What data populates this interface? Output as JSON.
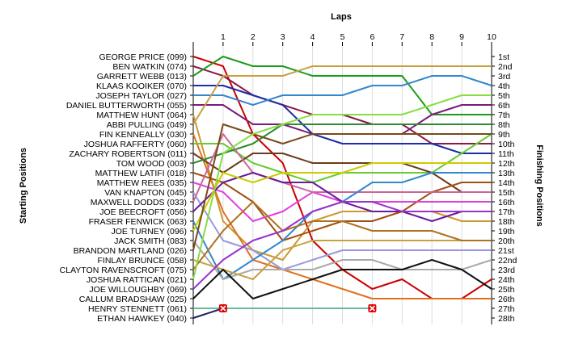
{
  "chart_data": {
    "type": "line",
    "title": "",
    "xlabel": "Laps",
    "ylabel_left": "Starting Positions",
    "ylabel_right": "Finishing Positions",
    "x": [
      0,
      1,
      2,
      3,
      4,
      5,
      6,
      7,
      8,
      9,
      10
    ],
    "x_tick_labels": [
      "1",
      "2",
      "3",
      "4",
      "5",
      "6",
      "7",
      "8",
      "9",
      "10"
    ],
    "ylim": [
      1,
      28
    ],
    "y_inverted": true,
    "grid": "vertical",
    "finishing_positions": [
      "1st",
      "2nd",
      "3rd",
      "4th",
      "5th",
      "6th",
      "7th",
      "8th",
      "9th",
      "10th",
      "11th",
      "12th",
      "13th",
      "14th",
      "15th",
      "16th",
      "17th",
      "18th",
      "19th",
      "20th",
      "21st",
      "22nd",
      "23rd",
      "24th",
      "25th",
      "26th",
      "27th",
      "28th"
    ],
    "retirement_marker_color": "#dd0000",
    "series": [
      {
        "name": "GEORGE PRICE (099)",
        "color": "#cc0000",
        "positions": [
          1,
          2,
          9,
          12,
          20,
          23,
          25,
          24,
          26,
          26,
          24
        ]
      },
      {
        "name": "BEN WATKIN (074)",
        "color": "#8b1a4a",
        "positions": [
          2,
          3,
          5,
          6,
          7,
          7,
          8,
          8,
          10,
          10,
          10
        ]
      },
      {
        "name": "GARRETT WEBB (013)",
        "color": "#1c9c1c",
        "positions": [
          3,
          1,
          2,
          2,
          3,
          3,
          3,
          3,
          7,
          7,
          7
        ]
      },
      {
        "name": "KLAAS KOOIKER (070)",
        "color": "#1c2ea8",
        "positions": [
          4,
          4,
          5,
          6,
          9,
          10,
          10,
          10,
          10,
          11,
          11
        ]
      },
      {
        "name": "JOSEPH TAYLOR (027)",
        "color": "#3388cc",
        "positions": [
          5,
          5,
          6,
          5,
          5,
          5,
          4,
          4,
          3,
          3,
          4
        ]
      },
      {
        "name": "DANIEL BUTTERWORTH (055)",
        "color": "#7a1a7a",
        "positions": [
          6,
          6,
          8,
          8,
          9,
          9,
          9,
          9,
          7,
          6,
          6
        ]
      },
      {
        "name": "MATTHEW HUNT (064)",
        "color": "#cc9933",
        "positions": [
          7,
          18,
          21,
          22,
          18,
          17,
          17,
          17,
          17,
          18,
          18
        ]
      },
      {
        "name": "ABBI PULLING (049)",
        "color": "#c8a040",
        "positions": [
          8,
          3,
          3,
          3,
          2,
          2,
          2,
          2,
          2,
          2,
          2
        ]
      },
      {
        "name": "FIN KENNEALLY (030)",
        "color": "#e07020",
        "positions": [
          9,
          17,
          22,
          23,
          24,
          25,
          26,
          26,
          26,
          26,
          26
        ]
      },
      {
        "name": "JOSHUA RAFFERTY (060)",
        "color": "#66cc33",
        "positions": [
          10,
          10,
          12,
          13,
          14,
          13,
          13,
          13,
          13,
          11,
          9
        ]
      },
      {
        "name": "ZACHARY ROBERTSON (011)",
        "color": "#6b3a1a",
        "positions": [
          11,
          13,
          11,
          11,
          12,
          12,
          12,
          12,
          13,
          15,
          15
        ]
      },
      {
        "name": "TOM WOOD (003)",
        "color": "#2e8b2e",
        "positions": [
          12,
          11,
          10,
          8,
          8,
          8,
          8,
          8,
          8,
          8,
          8
        ]
      },
      {
        "name": "MATTHEW LATIFI (018)",
        "color": "#a05010",
        "positions": [
          13,
          14,
          16,
          20,
          19,
          18,
          18,
          17,
          15,
          14,
          14
        ]
      },
      {
        "name": "MATTHEW REES (035)",
        "color": "#e040e0",
        "positions": [
          14,
          15,
          18,
          17,
          15,
          16,
          16,
          16,
          16,
          16,
          16
        ]
      },
      {
        "name": "VAN KNAPTON (045)",
        "color": "#9999dd",
        "positions": [
          15,
          20,
          21,
          23,
          22,
          21,
          21,
          21,
          21,
          21,
          21
        ]
      },
      {
        "name": "MAXWELL DODDS (033)",
        "color": "#cc6699",
        "positions": [
          16,
          9,
          13,
          14,
          15,
          15,
          15,
          15,
          15,
          15,
          15
        ]
      },
      {
        "name": "JOE BEECROFT (056)",
        "color": "#6a1a9a",
        "positions": [
          17,
          14,
          13,
          14,
          14,
          16,
          17,
          17,
          18,
          17,
          17
        ]
      },
      {
        "name": "FRASER FENWICK (063)",
        "color": "#3388cc",
        "positions": [
          18,
          24,
          22,
          20,
          17,
          16,
          14,
          14,
          13,
          13,
          13
        ]
      },
      {
        "name": "JOE TURNEY (096)",
        "color": "#cccc00",
        "positions": [
          19,
          13,
          14,
          13,
          13,
          13,
          12,
          12,
          12,
          12,
          12
        ]
      },
      {
        "name": "JACK SMITH (083)",
        "color": "#aaaaaa",
        "positions": [
          20,
          24,
          23,
          23,
          23,
          22,
          22,
          23,
          23,
          23,
          22
        ]
      },
      {
        "name": "BRANDON MARTLAND (026)",
        "color": "#7a4a1a",
        "positions": [
          21,
          8,
          9,
          10,
          9,
          9,
          9,
          9,
          9,
          9,
          9
        ]
      },
      {
        "name": "FINLAY BRUNCE (058)",
        "color": "#c8a040",
        "positions": [
          22,
          23,
          24,
          21,
          20,
          20,
          20,
          20,
          20,
          20,
          20
        ]
      },
      {
        "name": "CLAYTON RAVENSCROFT (075)",
        "color": "#b07020",
        "positions": [
          23,
          19,
          16,
          19,
          18,
          18,
          19,
          19,
          19,
          20,
          20
        ]
      },
      {
        "name": "JOSHUA RATTICAN (021)",
        "color": "#88dd44",
        "positions": [
          24,
          11,
          9,
          8,
          7,
          7,
          7,
          7,
          6,
          5,
          5
        ]
      },
      {
        "name": "JOE WILLOUGHBY (069)",
        "color": "#9933cc",
        "positions": [
          25,
          22,
          20,
          19,
          17,
          16,
          16,
          17,
          17,
          17,
          17
        ]
      },
      {
        "name": "CALLUM BRADSHAW (025)",
        "color": "#111111",
        "positions": [
          26,
          23,
          26,
          25,
          24,
          23,
          23,
          23,
          22,
          23,
          25
        ]
      },
      {
        "name": "HENRY STENNETT (061)",
        "color": "#66bb99",
        "positions": [
          27,
          27,
          27,
          27,
          27,
          27,
          27
        ],
        "retired_after_lap": 6
      },
      {
        "name": "ETHAN HAWKEY (040)",
        "color": "#1c1c6a",
        "positions": [
          28,
          27,
          null
        ],
        "retired_after_lap": 1
      }
    ]
  }
}
